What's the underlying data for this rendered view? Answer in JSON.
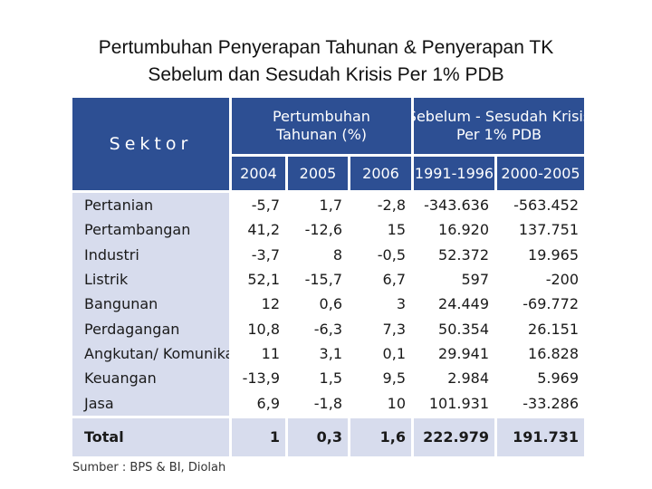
{
  "title": {
    "line1": "Pertumbuhan Penyerapan Tahunan & Penyerapan TK",
    "line2": "Sebelum dan Sesudah Krisis Per 1% PDB"
  },
  "table": {
    "header": {
      "sektor": "Sektor",
      "growth_line1": "Pertumbuhan",
      "growth_line2": "Tahunan (%)",
      "crisis_line1": "Sebelum - Sesudah Krisis",
      "crisis_line2": "Per 1% PDB",
      "years": [
        "2004",
        "2005",
        "2006",
        "1991-1996",
        "2000-2005"
      ]
    },
    "rows": [
      {
        "sector": "Pertanian",
        "values": [
          "-5,7",
          "1,7",
          "-2,8",
          "-343.636",
          "-563.452"
        ]
      },
      {
        "sector": "Pertambangan",
        "values": [
          "41,2",
          "-12,6",
          "15",
          "16.920",
          "137.751"
        ]
      },
      {
        "sector": "Industri",
        "values": [
          "-3,7",
          "8",
          "-0,5",
          "52.372",
          "19.965"
        ]
      },
      {
        "sector": "Listrik",
        "values": [
          "52,1",
          "-15,7",
          "6,7",
          "597",
          "-200"
        ]
      },
      {
        "sector": "Bangunan",
        "values": [
          "12",
          "0,6",
          "3",
          "24.449",
          "-69.772"
        ]
      },
      {
        "sector": "Perdagangan",
        "values": [
          "10,8",
          "-6,3",
          "7,3",
          "50.354",
          "26.151"
        ]
      },
      {
        "sector": "Angkutan/ Komunikasi",
        "values": [
          "11",
          "3,1",
          "0,1",
          "29.941",
          "16.828"
        ]
      },
      {
        "sector": "Keuangan",
        "values": [
          "-13,9",
          "1,5",
          "9,5",
          "2.984",
          "5.969"
        ]
      },
      {
        "sector": "Jasa",
        "values": [
          "6,9",
          "-1,8",
          "10",
          "101.931",
          "-33.286"
        ]
      }
    ],
    "total": {
      "label": "Total",
      "values": [
        "1",
        "0,3",
        "1,6",
        "222.979",
        "191.731"
      ]
    }
  },
  "source": "Sumber : BPS & BI, Diolah"
}
